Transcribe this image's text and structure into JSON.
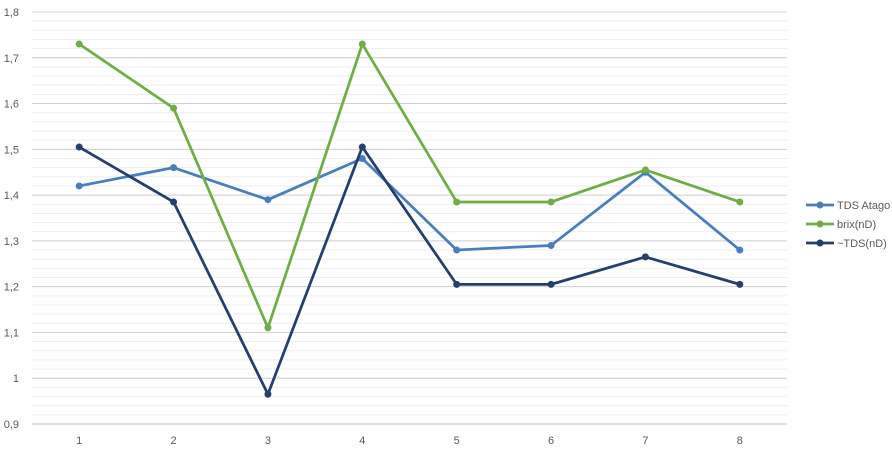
{
  "chart_data": {
    "type": "line",
    "title": "",
    "xlabel": "",
    "ylabel": "",
    "categories": [
      "1",
      "2",
      "3",
      "4",
      "5",
      "6",
      "7",
      "8"
    ],
    "ylim": [
      0.9,
      1.8
    ],
    "y_ticks": [
      0.9,
      1.0,
      1.1,
      1.2,
      1.3,
      1.4,
      1.5,
      1.6,
      1.7,
      1.8
    ],
    "y_tick_labels": [
      "0,9",
      "1",
      "1,1",
      "1,2",
      "1,3",
      "1,4",
      "1,5",
      "1,6",
      "1,7",
      "1,8"
    ],
    "grid": true,
    "legend_position": "right",
    "series": [
      {
        "name": "TDS Atago",
        "color": "#4a7ebb",
        "values": [
          1.42,
          1.46,
          1.39,
          1.48,
          1.28,
          1.29,
          1.45,
          1.28
        ]
      },
      {
        "name": "brix(nD)",
        "color": "#70ad47",
        "values": [
          1.73,
          1.59,
          1.11,
          1.73,
          1.385,
          1.385,
          1.455,
          1.385
        ]
      },
      {
        "name": "~TDS(nD)",
        "color": "#243f6b",
        "values": [
          1.505,
          1.385,
          0.965,
          1.505,
          1.205,
          1.205,
          1.265,
          1.205
        ]
      }
    ]
  }
}
